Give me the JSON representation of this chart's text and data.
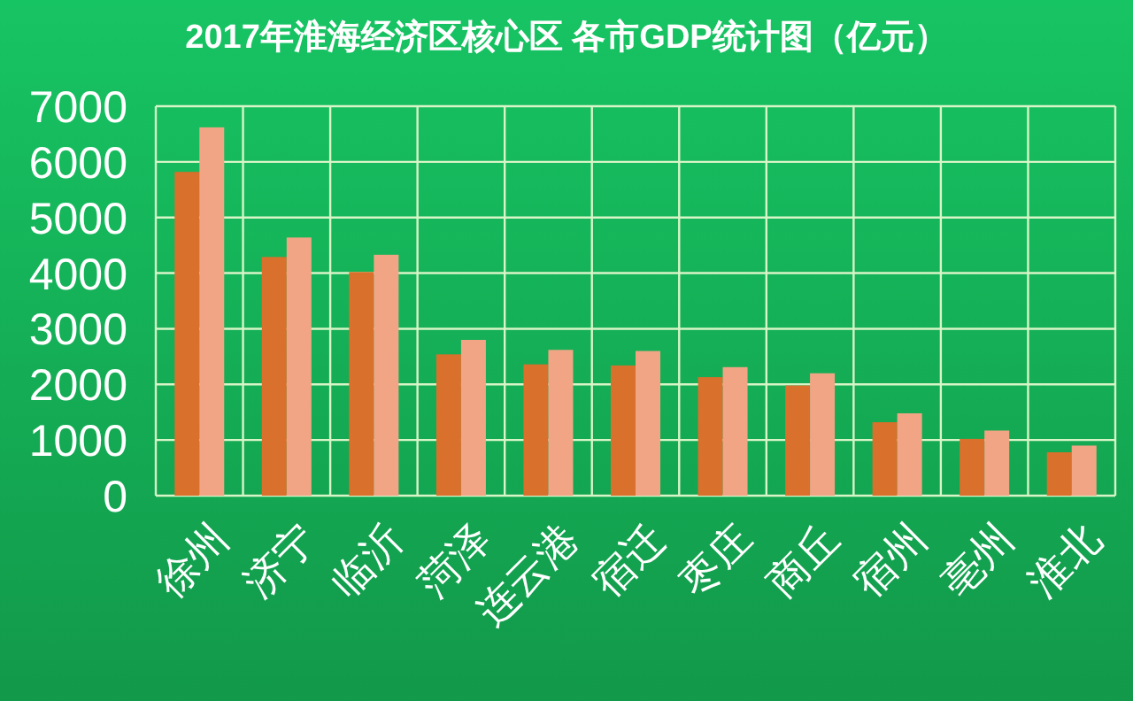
{
  "chart_data": {
    "type": "bar",
    "title": "2017年淮海经济区核心区  各市GDP统计图（亿元）",
    "categories": [
      "徐州",
      "济宁",
      "临沂",
      "菏泽",
      "连云港",
      "宿迁",
      "枣庄",
      "商丘",
      "宿州",
      "亳州",
      "淮北"
    ],
    "series": [
      {
        "color": "#d9702c",
        "values": [
          5820,
          4290,
          4020,
          2540,
          2360,
          2340,
          2130,
          1980,
          1320,
          1020,
          780
        ]
      },
      {
        "color": "#f2a585",
        "values": [
          6620,
          4640,
          4330,
          2800,
          2620,
          2600,
          2310,
          2200,
          1480,
          1170,
          900
        ]
      }
    ],
    "ylim": [
      0,
      7000
    ],
    "yticks": [
      0,
      1000,
      2000,
      3000,
      4000,
      5000,
      6000,
      7000
    ],
    "grid": true
  }
}
